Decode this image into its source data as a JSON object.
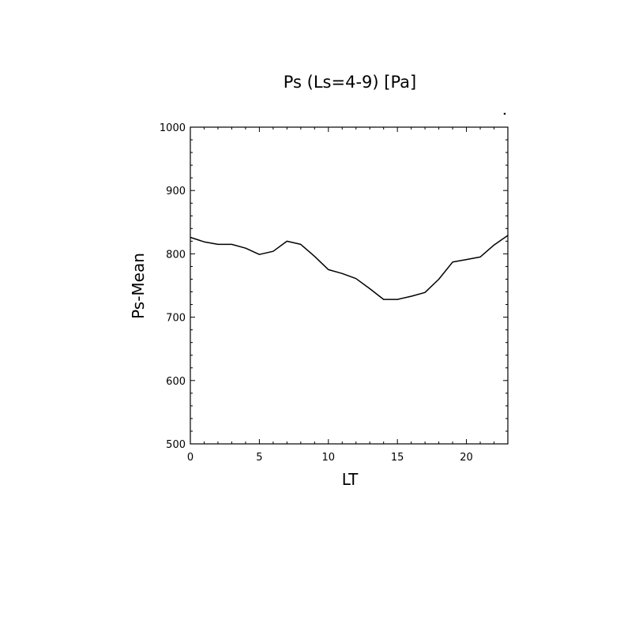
{
  "chart_data": {
    "type": "line",
    "title": "Ps (Ls=4-9) [Pa]",
    "xlabel": "LT",
    "ylabel": "Ps-Mean",
    "xlim": [
      0,
      23
    ],
    "ylim": [
      500,
      1000
    ],
    "xticks": [
      0,
      5,
      10,
      15,
      20
    ],
    "xtick_labels": [
      "0",
      "5",
      "10",
      "15",
      "20"
    ],
    "yticks": [
      500,
      600,
      700,
      800,
      900,
      1000
    ],
    "ytick_labels": [
      "500",
      "600",
      "700",
      "800",
      "900",
      "1000"
    ],
    "grid": false,
    "series": [
      {
        "color": "#000000",
        "x": [
          0,
          1,
          2,
          3,
          4,
          5,
          6,
          7,
          8,
          9,
          10,
          11,
          12,
          13,
          14,
          15,
          16,
          17,
          18,
          19,
          20,
          21,
          22,
          23
        ],
        "y": [
          826,
          819,
          815,
          815,
          809,
          799,
          804,
          820,
          815,
          796,
          775,
          769,
          761,
          745,
          728,
          728,
          733,
          739,
          760,
          787,
          791,
          795,
          814,
          829
        ]
      }
    ]
  }
}
